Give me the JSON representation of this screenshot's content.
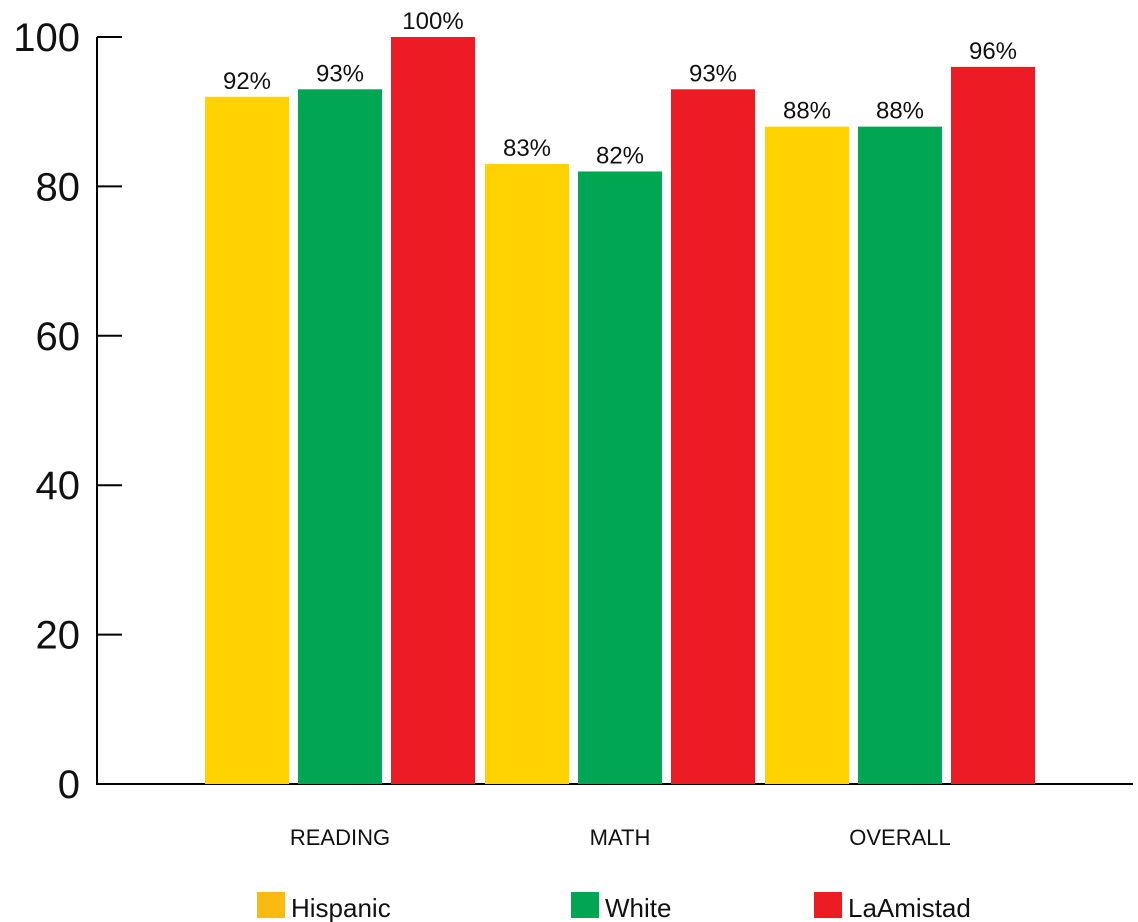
{
  "chart_data": {
    "type": "bar",
    "categories": [
      "READING",
      "MATH",
      "OVERALL"
    ],
    "series": [
      {
        "name": "Hispanic",
        "values": [
          92,
          83,
          88
        ],
        "labels": [
          "92%",
          "83%",
          "88%"
        ],
        "color": "#FFD200",
        "legend_color": "#FDB913"
      },
      {
        "name": "White",
        "values": [
          93,
          82,
          88
        ],
        "labels": [
          "93%",
          "82%",
          "88%"
        ],
        "color": "#00A651",
        "legend_color": "#00A651"
      },
      {
        "name": "LaAmistad",
        "values": [
          100,
          93,
          96
        ],
        "labels": [
          "100%",
          "93%",
          "96%"
        ],
        "color": "#ED1C24",
        "legend_color": "#ED1C24"
      }
    ],
    "yticks": [
      0,
      20,
      40,
      60,
      80,
      100
    ],
    "ylim": [
      0,
      100
    ],
    "grid": false,
    "legend_position": "bottom",
    "title": "",
    "xlabel": "",
    "ylabel": ""
  }
}
